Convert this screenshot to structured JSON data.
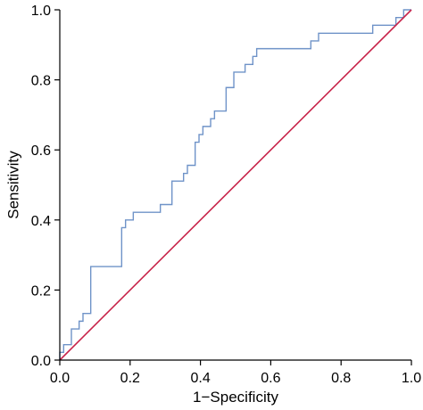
{
  "chart_data": {
    "type": "line",
    "title": "",
    "xlabel": "1−Specificity",
    "ylabel": "Sensitivity",
    "xlim": [
      0,
      1
    ],
    "ylim": [
      0,
      1
    ],
    "x_ticks": [
      "0.0",
      "0.2",
      "0.4",
      "0.6",
      "0.8",
      "1.0"
    ],
    "y_ticks": [
      "0.0",
      "0.2",
      "0.4",
      "0.6",
      "0.8",
      "1.0"
    ],
    "grid": false,
    "legend": "none",
    "series": [
      {
        "color": "#6f93c8",
        "points": [
          [
            0.0,
            0.0
          ],
          [
            0.0,
            0.022
          ],
          [
            0.011,
            0.022
          ],
          [
            0.011,
            0.044
          ],
          [
            0.033,
            0.044
          ],
          [
            0.033,
            0.089
          ],
          [
            0.055,
            0.089
          ],
          [
            0.055,
            0.111
          ],
          [
            0.066,
            0.111
          ],
          [
            0.066,
            0.133
          ],
          [
            0.088,
            0.133
          ],
          [
            0.088,
            0.267
          ],
          [
            0.176,
            0.267
          ],
          [
            0.176,
            0.378
          ],
          [
            0.187,
            0.378
          ],
          [
            0.187,
            0.4
          ],
          [
            0.209,
            0.4
          ],
          [
            0.209,
            0.422
          ],
          [
            0.286,
            0.422
          ],
          [
            0.286,
            0.444
          ],
          [
            0.319,
            0.444
          ],
          [
            0.319,
            0.511
          ],
          [
            0.352,
            0.511
          ],
          [
            0.352,
            0.533
          ],
          [
            0.363,
            0.533
          ],
          [
            0.363,
            0.556
          ],
          [
            0.385,
            0.556
          ],
          [
            0.385,
            0.622
          ],
          [
            0.396,
            0.622
          ],
          [
            0.396,
            0.644
          ],
          [
            0.407,
            0.644
          ],
          [
            0.407,
            0.667
          ],
          [
            0.429,
            0.667
          ],
          [
            0.429,
            0.689
          ],
          [
            0.44,
            0.689
          ],
          [
            0.44,
            0.711
          ],
          [
            0.473,
            0.711
          ],
          [
            0.473,
            0.778
          ],
          [
            0.495,
            0.778
          ],
          [
            0.495,
            0.822
          ],
          [
            0.527,
            0.822
          ],
          [
            0.527,
            0.844
          ],
          [
            0.549,
            0.844
          ],
          [
            0.549,
            0.867
          ],
          [
            0.56,
            0.867
          ],
          [
            0.56,
            0.889
          ],
          [
            0.714,
            0.889
          ],
          [
            0.714,
            0.911
          ],
          [
            0.736,
            0.911
          ],
          [
            0.736,
            0.933
          ],
          [
            0.89,
            0.933
          ],
          [
            0.89,
            0.956
          ],
          [
            0.956,
            0.956
          ],
          [
            0.956,
            0.978
          ],
          [
            0.978,
            0.978
          ],
          [
            0.978,
            1.0
          ],
          [
            1.0,
            1.0
          ]
        ]
      },
      {
        "color": "#c8244a",
        "points": [
          [
            0,
            0
          ],
          [
            1,
            1
          ]
        ]
      }
    ]
  }
}
